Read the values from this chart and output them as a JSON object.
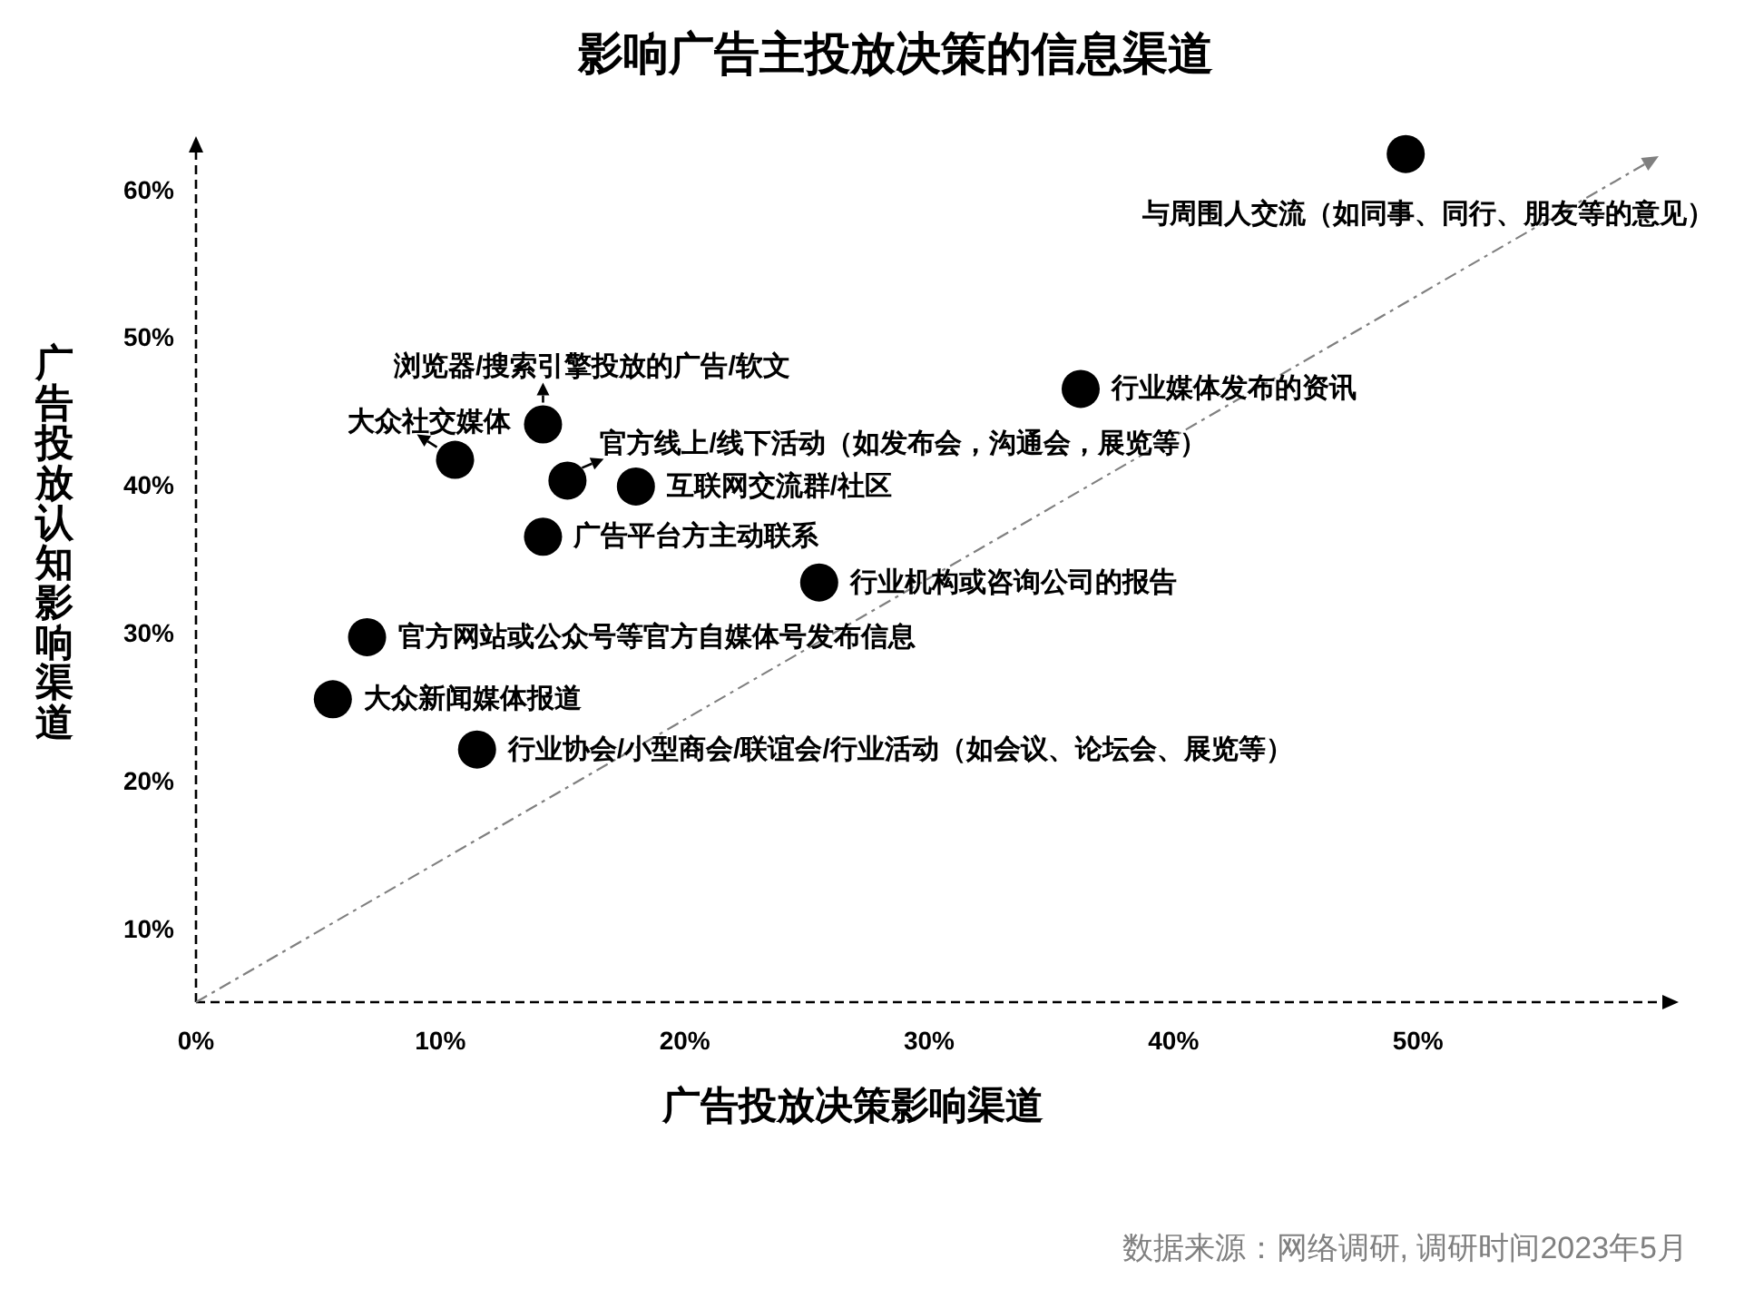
{
  "chart_data": {
    "type": "scatter",
    "title": "影响广告主投放决策的信息渠道",
    "xlabel": "广告投放决策影响渠道",
    "ylabel": "广告投放认知影响渠道",
    "annotations": [
      "数据来源：网络调研, 调研时间2023年5月"
    ],
    "xlim": [
      0,
      60
    ],
    "ylim": [
      5,
      62.5
    ],
    "xticks": [
      {
        "value": 0,
        "label": "0%"
      },
      {
        "value": 10,
        "label": "10%"
      },
      {
        "value": 20,
        "label": "20%"
      },
      {
        "value": 30,
        "label": "30%"
      },
      {
        "value": 40,
        "label": "40%"
      },
      {
        "value": 50,
        "label": "50%"
      }
    ],
    "yticks": [
      {
        "value": 10,
        "label": "10%"
      },
      {
        "value": 20,
        "label": "20%"
      },
      {
        "value": 30,
        "label": "30%"
      },
      {
        "value": 40,
        "label": "40%"
      },
      {
        "value": 50,
        "label": "50%"
      },
      {
        "value": 60,
        "label": "60%"
      }
    ],
    "marker": "circle",
    "series": [
      {
        "name": "与周围人交流（如同事、同行、朋友等的意见）",
        "color": "#000000",
        "x": [
          49.5
        ],
        "values": [
          62.4
        ]
      },
      {
        "name": "行业媒体发布的资讯",
        "color": "#000000",
        "x": [
          36.2
        ],
        "values": [
          46.5
        ]
      },
      {
        "name": "浏览器/搜索引擎投放的广告/软文",
        "color": "#000000",
        "x": [
          14.2
        ],
        "values": [
          44.1
        ]
      },
      {
        "name": "大众社交媒体",
        "color": "#000000",
        "x": [
          10.6
        ],
        "values": [
          41.7
        ]
      },
      {
        "name": "官方线上/线下活动（如发布会，沟通会，展览等）",
        "color": "#000000",
        "x": [
          15.2
        ],
        "values": [
          40.3
        ]
      },
      {
        "name": "互联网交流群/社区",
        "color": "#000000",
        "x": [
          18.0
        ],
        "values": [
          39.9
        ]
      },
      {
        "name": "广告平台方主动联系",
        "color": "#000000",
        "x": [
          14.2
        ],
        "values": [
          36.5
        ]
      },
      {
        "name": "行业机构或咨询公司的报告",
        "color": "#000000",
        "x": [
          25.5
        ],
        "values": [
          33.4
        ]
      },
      {
        "name": "官方网站或公众号等官方自媒体号发布信息",
        "color": "#000000",
        "x": [
          7.0
        ],
        "values": [
          29.7
        ]
      },
      {
        "name": "大众新闻媒体报道",
        "color": "#000000",
        "x": [
          5.6
        ],
        "values": [
          25.5
        ]
      },
      {
        "name": "行业协会/小型商会/联谊会/行业活动（如会议、论坛会、展览等）",
        "color": "#000000",
        "x": [
          11.5
        ],
        "values": [
          22.1
        ]
      }
    ]
  }
}
